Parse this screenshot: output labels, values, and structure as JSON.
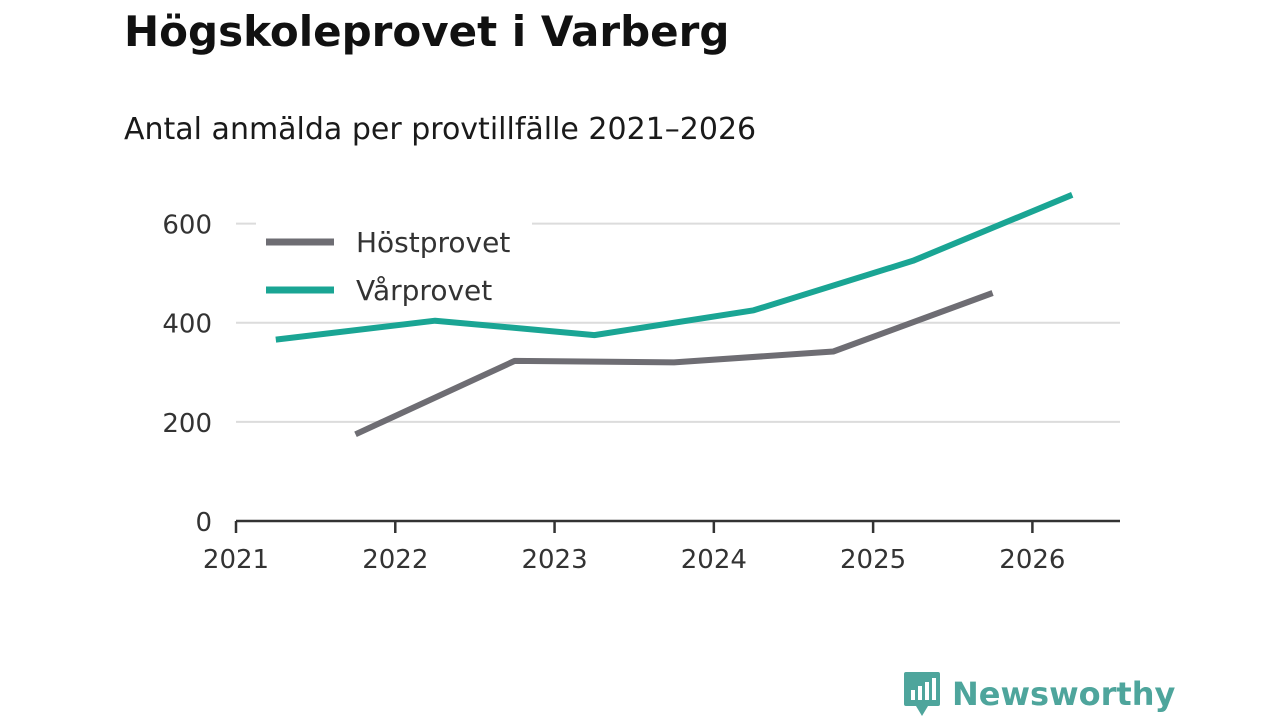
{
  "title": "Högskoleprovet i Varberg",
  "subtitle": "Antal anmälda per provtillfälle 2021–2026",
  "logo": {
    "text": "Newsworthy",
    "color": "#4ea59c"
  },
  "chart_data": {
    "type": "line",
    "title": "Högskoleprovet i Varberg",
    "subtitle": "Antal anmälda per provtillfälle 2021–2026",
    "xlabel": "",
    "ylabel": "",
    "xlim": [
      2021,
      2026.55
    ],
    "ylim": [
      0,
      700
    ],
    "x_ticks": [
      2021,
      2022,
      2023,
      2024,
      2025,
      2026
    ],
    "x_tick_labels": [
      "2021",
      "2022",
      "2023",
      "2024",
      "2025",
      "2026"
    ],
    "y_ticks": [
      0,
      200,
      400,
      600
    ],
    "y_tick_labels": [
      "0",
      "200",
      "400",
      "600"
    ],
    "grid": true,
    "legend_position": "top-left",
    "series": [
      {
        "name": "Höstprovet",
        "color": "#6e6d73",
        "x": [
          2021.75,
          2022.75,
          2023.75,
          2024.75,
          2025.75
        ],
        "values": [
          175,
          323,
          320,
          342,
          460
        ]
      },
      {
        "name": "Vårprovet",
        "color": "#1aa594",
        "x": [
          2021.25,
          2022.25,
          2023.25,
          2024.25,
          2025.25,
          2026.25
        ],
        "values": [
          366,
          404,
          375,
          425,
          525,
          658
        ]
      }
    ]
  }
}
